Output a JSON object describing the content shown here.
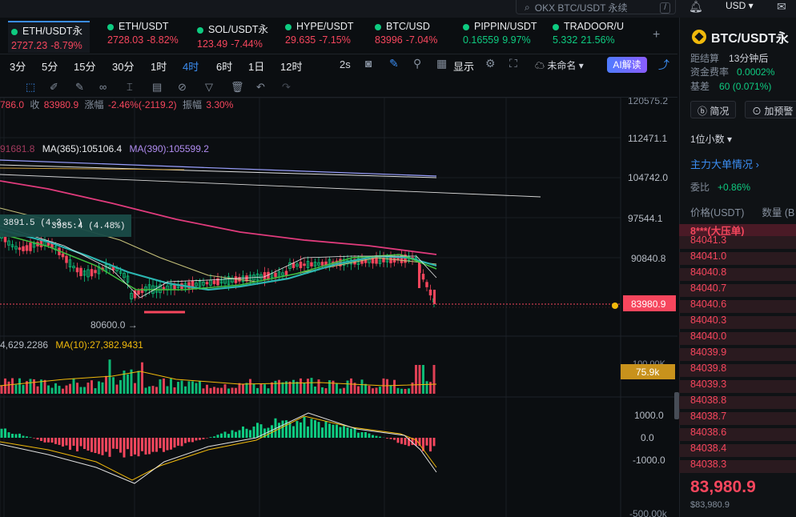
{
  "search": {
    "placeholder": "OKX BTC/USDT 永续",
    "shortcut": "/"
  },
  "header": {
    "currency": "USD"
  },
  "tickers": [
    {
      "name": "ETH/USDT永",
      "price": "2727.23",
      "change": "-8.79%",
      "dir": "dn",
      "active": true
    },
    {
      "name": "ETH/USDT",
      "price": "2728.03",
      "change": "-8.82%",
      "dir": "dn"
    },
    {
      "name": "SOL/USDT永",
      "price": "123.49",
      "change": "-7.44%",
      "dir": "dn"
    },
    {
      "name": "HYPE/USDT",
      "price": "29.635",
      "change": "-7.15%",
      "dir": "dn"
    },
    {
      "name": "BTC/USD",
      "price": "83996",
      "change": "-7.04%",
      "dir": "dn"
    },
    {
      "name": "PIPPIN/USDT",
      "price": "0.16559",
      "change": "9.97%",
      "dir": "up"
    },
    {
      "name": "TRADOOR/U",
      "price": "5.332",
      "change": "21.56%",
      "dir": "up"
    }
  ],
  "timeframes": [
    "3分",
    "5分",
    "15分",
    "30分",
    "1时",
    "4时",
    "6时",
    "1日",
    "12时"
  ],
  "active_timeframe": "4时",
  "toolbar": {
    "interval": "2s",
    "show_label": "显示",
    "layout_name": "未命名",
    "ai_label": "AI解读"
  },
  "chart": {
    "ohlc_legend": {
      "open_part": "786.0",
      "close_label": "收",
      "close": "83980.9",
      "change_label": "涨幅",
      "change": "-2.46%(-2119.2)",
      "amp_label": "振幅",
      "amp": "3.30%"
    },
    "ma_legend": {
      "faded": "91681.8",
      "ma365": "MA(365):105106.4",
      "ma390": "MA(390):105599.2"
    },
    "tooltip": {
      "left": "3891.5 (4.3...)",
      "main": "3985.4 (4.48%)"
    },
    "low_label": "80600.0 →",
    "price_axis": [
      "112471.1",
      "104742.0",
      "97544.1",
      "90840.8"
    ],
    "price_axis_top": "120575.2",
    "current_price": "83980.9",
    "volume_legend": {
      "value": "4,629.2286",
      "ma10": "MA(10):27,382.9431"
    },
    "volume_axis": {
      "top": "100.00K",
      "current": "75.9k"
    },
    "macd_axis": [
      "1000.0",
      "0.0",
      "-1000.0",
      "-500.00k"
    ]
  },
  "chart_data": {
    "type": "candlestick",
    "note_series": [
      "MA(365)",
      "MA(390)"
    ],
    "ma365": 105106.4,
    "ma390": 105599.2,
    "close": 83980.9,
    "low_marked": 80600.0,
    "volume_ma10": 27382.9431,
    "y_axis_ticks": [
      112471.1,
      104742.0,
      97544.1,
      90840.8
    ]
  },
  "sidebar": {
    "title": "BTC/USDT永",
    "settle_label": "距结算",
    "settle_value": "13分钟后",
    "funding_label": "资金费率",
    "funding_value": "0.0002%",
    "basis_label": "基差",
    "basis_value": "60 (0.071%)",
    "btn_brief": "简况",
    "btn_alert": "加预警",
    "decimals": "1位小数",
    "big_orders": "主力大单情况",
    "ratio_label": "委比",
    "ratio_value": "+0.86%",
    "col_price": "价格(USDT)",
    "col_qty": "数量 (B",
    "big_order_tag": "8***(大压单)",
    "asks": [
      "84041.3",
      "84041.0",
      "84040.8",
      "84040.7",
      "84040.6",
      "84040.3",
      "84040.0",
      "84039.9",
      "84039.8",
      "84039.3",
      "84038.8",
      "84038.7",
      "84038.6",
      "84038.4",
      "84038.3"
    ],
    "last_price": "83,980.9",
    "last_price_usd": "$83,980.9"
  },
  "colors": {
    "up": "#0ecb81",
    "down": "#f6465d",
    "accent": "#3b8df2",
    "bg": "#0b0e11"
  }
}
